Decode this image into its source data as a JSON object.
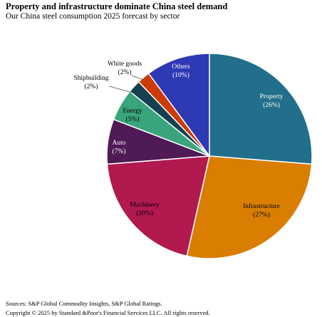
{
  "title": "Property and infrastructure dominate China steel demand",
  "subtitle": "Our China steel consumption 2025 forecast by sector",
  "chart_data": {
    "type": "pie",
    "title": "Property and infrastructure dominate China steel demand",
    "subtitle": "Our China steel consumption 2025 forecast by sector",
    "slices": [
      {
        "name": "Property",
        "value": 26,
        "label": "(26%)",
        "color": "#216f8a",
        "label_color": "#ffffff"
      },
      {
        "name": "Infrastructure",
        "value": 27,
        "label": "(27%)",
        "color": "#d97e00",
        "label_color": "#000000"
      },
      {
        "name": "Machinery",
        "value": 20,
        "label": "(20%)",
        "color": "#b1194f",
        "label_color": "#000000"
      },
      {
        "name": "Auto",
        "value": 7,
        "label": "(7%)",
        "color": "#4f1a55",
        "label_color": "#ffffff"
      },
      {
        "name": "Energy",
        "value": 5,
        "label": "(5%)",
        "color": "#3aa57c",
        "label_color": "#000000"
      },
      {
        "name": "Shipbuilding",
        "value": 2,
        "label": "(2%)",
        "color": "#163f4f",
        "label_color": "#000000"
      },
      {
        "name": "White goods",
        "value": 2,
        "label": "(2%)",
        "color": "#cc3a06",
        "label_color": "#000000"
      },
      {
        "name": "Others",
        "value": 10,
        "label": "(10%)",
        "color": "#2e3ab3",
        "label_color": "#ffffff"
      }
    ]
  },
  "footer": {
    "sources": "Sources: S&P Global Commodity Insights, S&P Global Ratings.",
    "copyright": "Copyright © 2025 by Standard &Poor's Financial Services LLC. All rights reserved."
  }
}
